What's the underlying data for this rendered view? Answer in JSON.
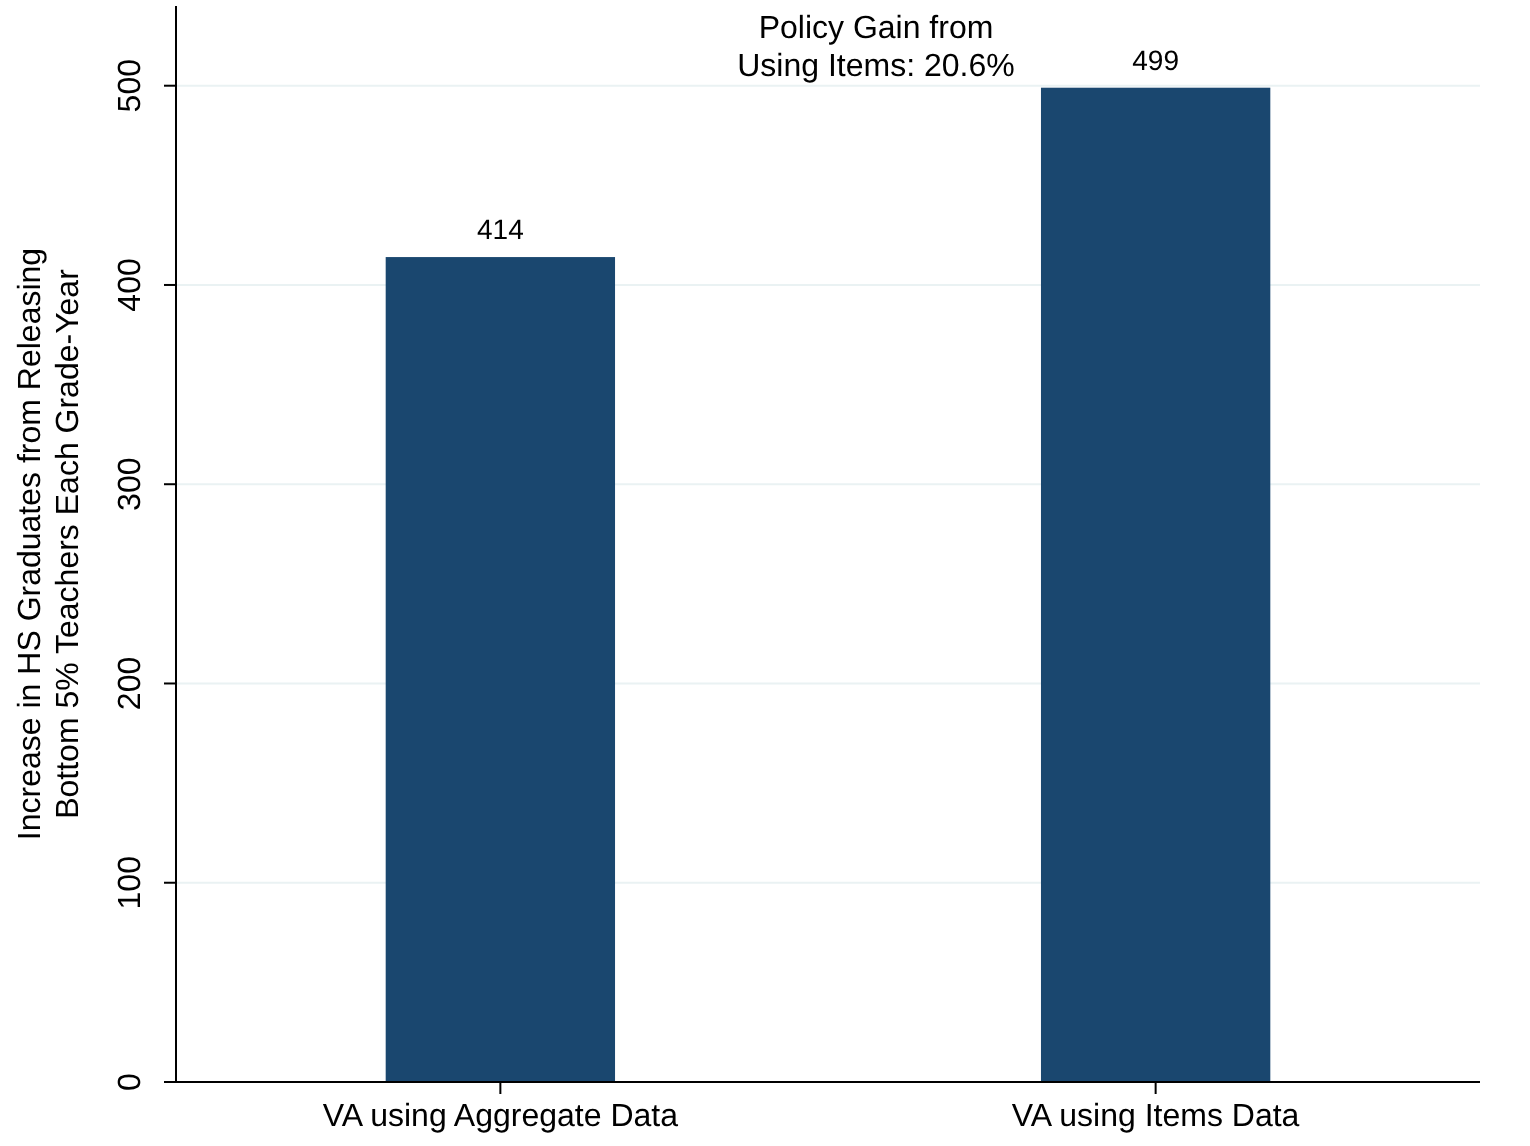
{
  "chart_data": {
    "type": "bar",
    "ylabel": "Increase in HS Graduates from Releasing\nBottom 5% Teachers Each Grade-Year",
    "categories": [
      "VA using Aggregate Data",
      "VA using Items Data"
    ],
    "values": [
      414,
      499
    ],
    "color": "#1a476f",
    "ylim": [
      0,
      540
    ],
    "yticks": [
      0,
      100,
      200,
      300,
      400,
      500
    ],
    "grid": "y",
    "data_labels": true,
    "annotations": [
      "Policy Gain from\nUsing Items: 20.6%"
    ]
  }
}
